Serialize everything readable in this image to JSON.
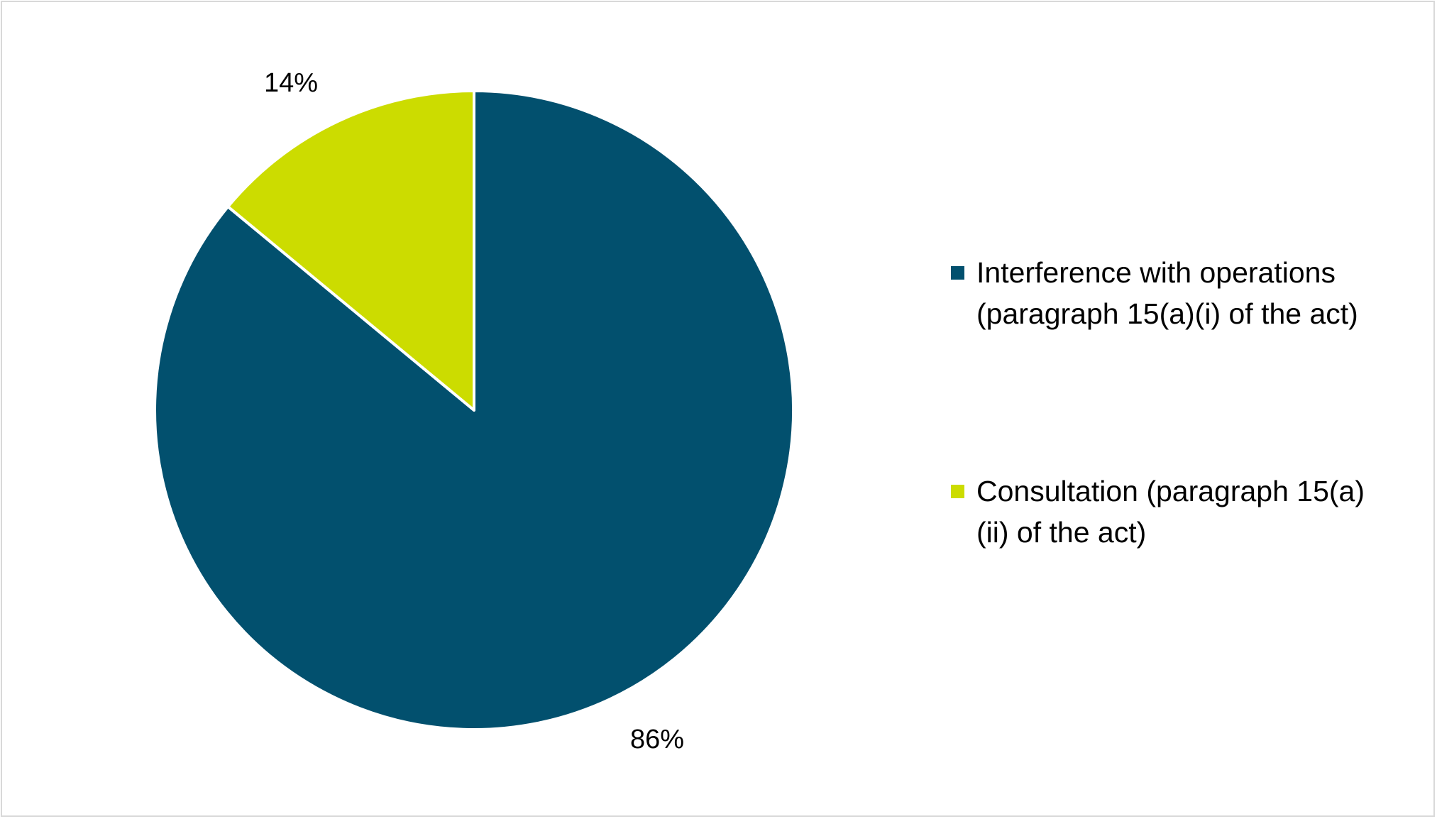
{
  "chart_data": {
    "type": "pie",
    "title": "",
    "slices": [
      {
        "name": "Interference with operations (paragraph 15(a)(i) of the act)",
        "value": 86,
        "label": "86%",
        "color": "#02506E"
      },
      {
        "name": "Consultation (paragraph 15(a)(ii) of the act)",
        "value": 14,
        "label": "14%",
        "color": "#CCDC00"
      }
    ],
    "legend_position": "right",
    "start_angle": "12 o'clock",
    "direction": "clockwise"
  },
  "legend": {
    "items": [
      {
        "label": "Interference with operations (paragraph 15(a)(i) of the act)",
        "color": "#02506E"
      },
      {
        "label": "Consultation (paragraph 15(a)(ii) of the act)",
        "color": "#CCDC00"
      }
    ]
  }
}
